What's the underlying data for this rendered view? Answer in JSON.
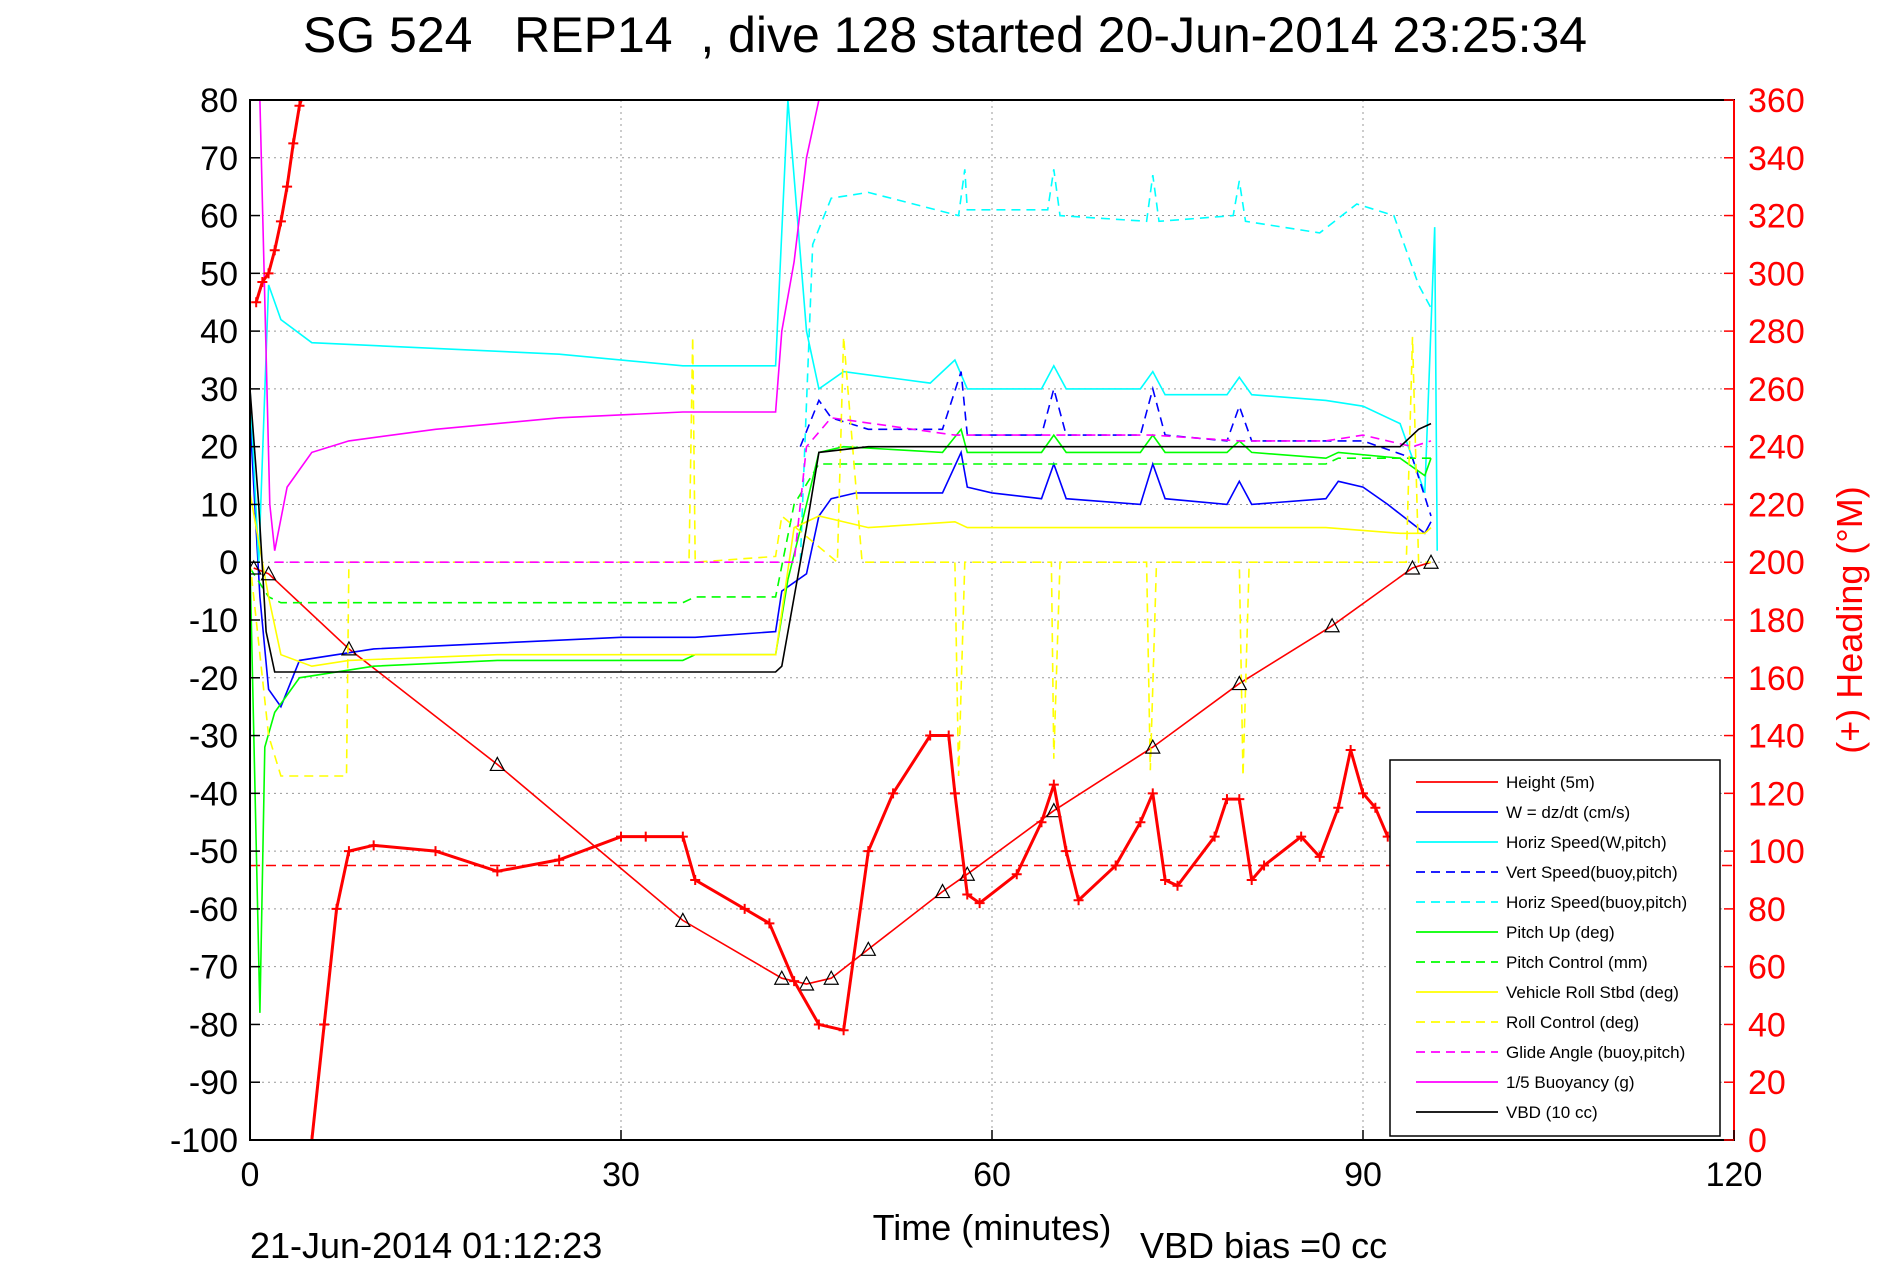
{
  "chart_data": {
    "type": "line",
    "title": "SG 524   REP14  , dive 128 started 20-Jun-2014 23:25:34",
    "xlabel": "Time (minutes)",
    "ylabel_right": "(+) Heading (°M)",
    "xlim": [
      0,
      120
    ],
    "ylim": [
      -100,
      80
    ],
    "ylim_right": [
      0,
      360
    ],
    "x_ticks": [
      "0",
      "30",
      "60",
      "90",
      "120"
    ],
    "y_ticks": [
      "80",
      "70",
      "60",
      "50",
      "40",
      "30",
      "20",
      "10",
      "0",
      "-10",
      "-20",
      "-30",
      "-40",
      "-50",
      "-60",
      "-70",
      "-80",
      "-90",
      "-100"
    ],
    "y_ticks_right": [
      "360",
      "340",
      "320",
      "300",
      "280",
      "260",
      "240",
      "220",
      "200",
      "180",
      "160",
      "140",
      "120",
      "100",
      "80",
      "60",
      "40",
      "20",
      "0"
    ],
    "grid": true,
    "legend_position": "bottom-right",
    "footer_left": "21-Jun-2014 01:12:23",
    "footer_right": "VBD bias =0 cc",
    "colors": {
      "red": "#ff0000",
      "blue": "#0000ff",
      "cyan": "#00ffff",
      "green": "#00ff00",
      "yellow": "#ffff00",
      "magenta": "#ff00ff",
      "black": "#000000"
    },
    "series": [
      {
        "name": "Height (5m)",
        "color": "#ff0000",
        "dash": "solid",
        "x": [
          0.3,
          1.5,
          8,
          20,
          35,
          43,
          45,
          47,
          50,
          56,
          58,
          65,
          73,
          80,
          87.5,
          94,
          95.5
        ],
        "y": [
          -1,
          -2,
          -15,
          -35,
          -62,
          -72,
          -73,
          -72,
          -67,
          -57,
          -54,
          -43,
          -32,
          -21,
          -11,
          -1,
          0
        ]
      },
      {
        "name": "W = dz/dt (cm/s)",
        "color": "#0000ff",
        "dash": "solid",
        "x": [
          0,
          0.8,
          1.5,
          2.5,
          4,
          10,
          20,
          30,
          36,
          42.5,
          43,
          45,
          46,
          47,
          49,
          52,
          56,
          57.5,
          58,
          60,
          64,
          65,
          66,
          72,
          73,
          74,
          79,
          80,
          81,
          87,
          88,
          90,
          92,
          95,
          95.5
        ],
        "y": [
          25,
          -6,
          -22,
          -25,
          -17,
          -15,
          -14,
          -13,
          -13,
          -12,
          -5,
          -2,
          8,
          11,
          12,
          12,
          12,
          19,
          13,
          12,
          11,
          17,
          11,
          10,
          17,
          11,
          10,
          14,
          10,
          11,
          14,
          13,
          10,
          5,
          7
        ]
      },
      {
        "name": "Horiz Speed(W,pitch)",
        "color": "#00ffff",
        "dash": "solid",
        "x": [
          0,
          0.7,
          1.5,
          2.5,
          5,
          15,
          25,
          35,
          42.5,
          43.5,
          45,
          46,
          48,
          55,
          57,
          58,
          64,
          65,
          66,
          72,
          73,
          74,
          79,
          80,
          81,
          87,
          90,
          93,
          95,
          95.8,
          96
        ],
        "y": [
          30,
          0,
          48,
          42,
          38,
          37,
          36,
          34,
          34,
          80,
          40,
          30,
          33,
          31,
          35,
          30,
          30,
          34,
          30,
          30,
          33,
          29,
          29,
          32,
          29,
          28,
          27,
          24,
          12,
          58,
          2
        ]
      },
      {
        "name": "Vert Speed(buoy,pitch)",
        "color": "#0000ff",
        "dash": "dashed",
        "x": [
          44.5,
          46,
          47,
          50,
          56,
          57.5,
          58,
          64,
          65,
          66,
          72,
          73,
          74,
          79,
          80,
          81,
          87,
          90,
          94,
          95.5
        ],
        "y": [
          20,
          28,
          25,
          23,
          23,
          33,
          22,
          22,
          30,
          22,
          22,
          30,
          22,
          21,
          27,
          21,
          21,
          21,
          18,
          8
        ]
      },
      {
        "name": "Horiz Speed(buoy,pitch)",
        "color": "#00ffff",
        "dash": "dashed",
        "x": [
          44.5,
          45.5,
          47,
          50,
          57.3,
          57.8,
          58,
          64.5,
          65,
          65.5,
          72.5,
          73,
          73.5,
          79.5,
          80,
          80.5,
          86.5,
          89.5,
          92.5,
          94.5,
          95.5
        ],
        "y": [
          0,
          55,
          63,
          64,
          60,
          68,
          61,
          61,
          68,
          60,
          59,
          67,
          59,
          60,
          66,
          59,
          57,
          62,
          60,
          48,
          44
        ]
      },
      {
        "name": "Pitch Up (deg)",
        "color": "#00ff00",
        "dash": "solid",
        "x": [
          0,
          0.8,
          1.2,
          2,
          4,
          10,
          20,
          35,
          36,
          42.5,
          43.5,
          45,
          46,
          48,
          56,
          57.5,
          58,
          64,
          65,
          66,
          72,
          73,
          74,
          79,
          80,
          81,
          87,
          88,
          93,
          95,
          95.5
        ],
        "y": [
          0,
          -78,
          -32,
          -26,
          -20,
          -18,
          -17,
          -17,
          -16,
          -16,
          -3,
          10,
          19,
          20,
          19,
          23,
          19,
          19,
          22,
          19,
          19,
          22,
          19,
          19,
          21,
          19,
          18,
          19,
          18,
          15,
          18
        ]
      },
      {
        "name": "Pitch Control (mm)",
        "color": "#00ff00",
        "dash": "dashed",
        "x": [
          0,
          1.5,
          2.5,
          35,
          36,
          42.5,
          44,
          46,
          57,
          58,
          65,
          73,
          80,
          87,
          88,
          93,
          95.5
        ],
        "y": [
          -1,
          -6,
          -7,
          -7,
          -6,
          -6,
          10,
          17,
          17,
          17,
          17,
          17,
          17,
          17,
          18,
          18,
          18
        ]
      },
      {
        "name": "Vehicle Roll Stbd (deg)",
        "color": "#ffff00",
        "dash": "solid",
        "x": [
          0,
          1.5,
          2.5,
          5,
          8,
          20,
          35,
          42.5,
          44,
          46,
          50,
          57,
          58,
          65,
          73,
          80,
          87,
          93,
          95,
          95.5
        ],
        "y": [
          12,
          -6,
          -16,
          -18,
          -17,
          -16,
          -16,
          -16,
          6,
          8,
          6,
          7,
          6,
          6,
          6,
          6,
          6,
          5,
          5,
          6
        ]
      },
      {
        "name": "Roll Control (deg)",
        "color": "#ffff00",
        "dash": "dashed",
        "x": [
          0,
          1.5,
          2.5,
          7.8,
          8,
          35.5,
          35.8,
          36,
          42.5,
          43,
          47.5,
          48,
          49.5,
          50,
          57,
          57.3,
          57.8,
          64.8,
          65,
          65.5,
          72.5,
          72.8,
          73.3,
          80,
          80.3,
          80.8,
          93.5,
          94,
          94.5,
          95.5
        ],
        "y": [
          0,
          -30,
          -37,
          -37,
          0,
          0,
          39,
          0,
          1,
          8,
          0,
          39,
          0,
          0,
          0,
          -37,
          0,
          0,
          -34,
          0,
          0,
          -36,
          0,
          0,
          -37,
          0,
          0,
          39,
          0,
          0
        ]
      },
      {
        "name": "Glide Angle (buoy,pitch)",
        "color": "#ff00ff",
        "dash": "dashed",
        "x": [
          2,
          44,
          45,
          47,
          57,
          65,
          73,
          80,
          87,
          90,
          94,
          95.5
        ],
        "y": [
          0,
          0,
          20,
          25,
          22,
          22,
          22,
          21,
          21,
          22,
          20,
          21
        ]
      },
      {
        "name": "1/5 Buoyancy (g)",
        "color": "#ff00ff",
        "dash": "solid",
        "x": [
          0.8,
          1.6,
          2,
          3,
          5,
          8,
          15,
          25,
          35,
          42.5,
          43,
          44,
          45,
          46
        ],
        "y": [
          80,
          10,
          2,
          13,
          19,
          21,
          23,
          25,
          26,
          26,
          40,
          52,
          70,
          80
        ]
      },
      {
        "name": "VBD (10 cc)",
        "color": "#000000",
        "dash": "solid",
        "x": [
          0,
          0.7,
          1.3,
          2,
          42.5,
          43,
          45,
          46,
          50,
          57,
          65,
          73,
          80,
          87,
          93,
          94.5,
          95.5
        ],
        "y": [
          30,
          10,
          -12,
          -19,
          -19,
          -18,
          6,
          19,
          20,
          20,
          20,
          20,
          20,
          20,
          20,
          23,
          24
        ]
      }
    ],
    "heading_series": {
      "color": "#ff0000",
      "axis": "right",
      "marker": "+",
      "x": [
        0.5,
        1,
        1.5,
        2,
        2.5,
        3,
        3.5,
        4,
        4.5,
        5,
        6,
        7,
        8,
        10,
        15,
        20,
        25,
        30,
        32,
        35,
        36,
        40,
        42,
        44,
        46,
        48,
        50,
        52,
        55,
        56.5,
        57,
        58,
        59,
        62,
        64,
        65,
        66,
        67,
        70,
        72,
        73,
        74,
        75,
        78,
        79,
        80,
        81,
        82,
        85,
        86.5,
        88,
        89,
        90,
        91,
        92
      ],
      "y": [
        290,
        297,
        300,
        308,
        318,
        330,
        345,
        358,
        365,
        0,
        40,
        80,
        100,
        102,
        100,
        93,
        97,
        105,
        105,
        105,
        90,
        80,
        75,
        55,
        40,
        38,
        100,
        120,
        140,
        140,
        120,
        85,
        82,
        92,
        110,
        123,
        100,
        83,
        95,
        110,
        120,
        90,
        88,
        105,
        118,
        118,
        90,
        95,
        105,
        98,
        115,
        135,
        120,
        115,
        105
      ]
    },
    "reference_line": {
      "color": "#ff0000",
      "dash": "dashed",
      "axis": "right",
      "value": 95
    }
  }
}
